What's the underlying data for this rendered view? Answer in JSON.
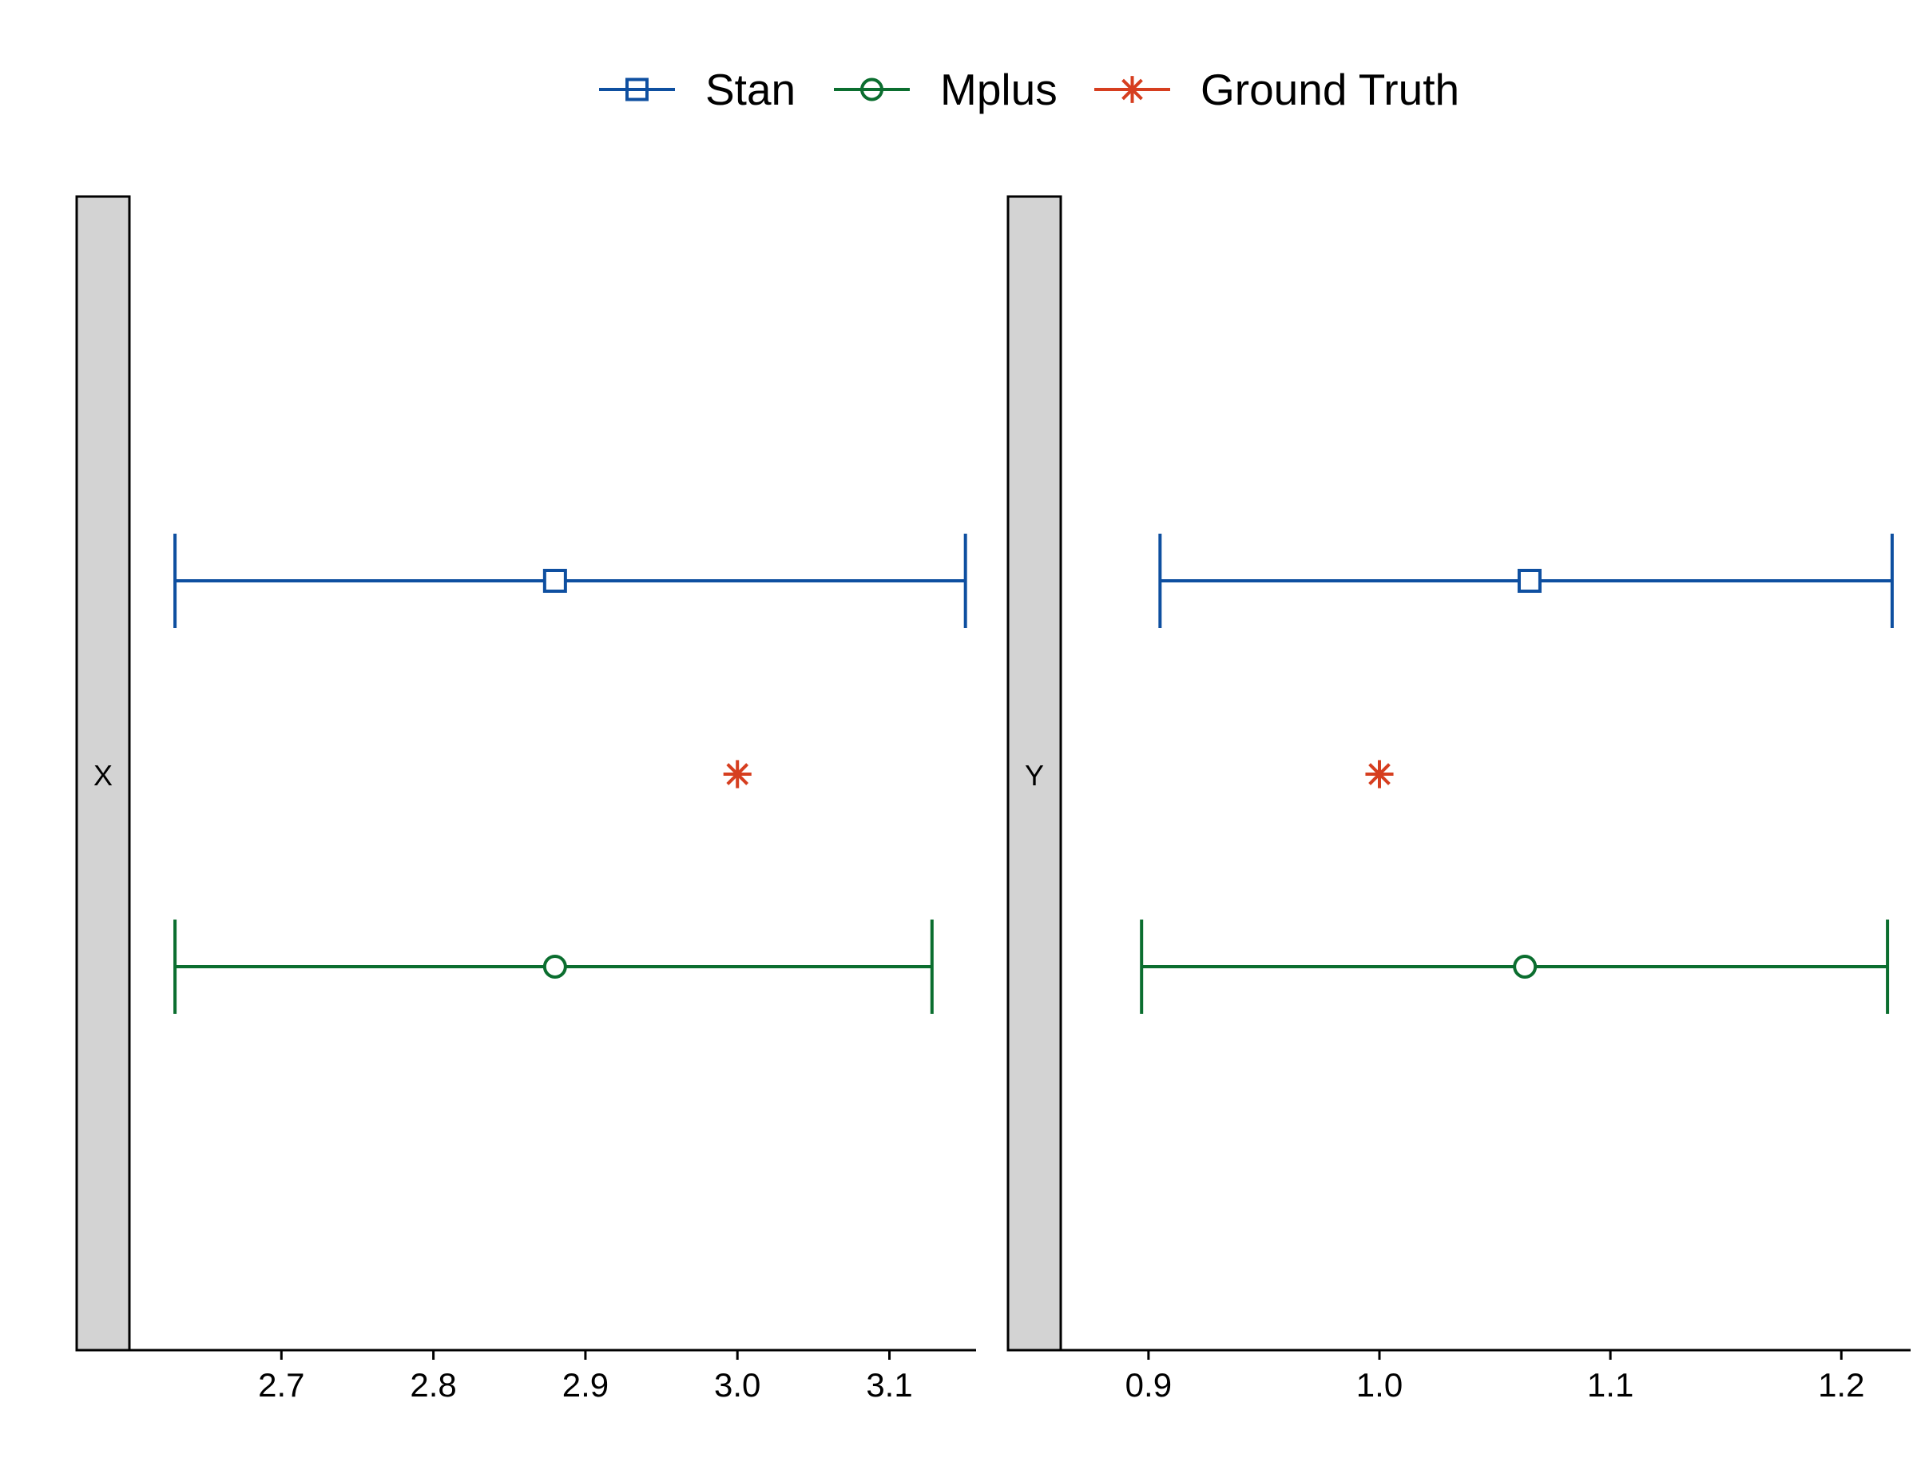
{
  "legend": {
    "items": [
      {
        "label": "Stan",
        "color": "#0E4FA0",
        "marker": "square-icon"
      },
      {
        "label": "Mplus",
        "color": "#0B6E2F",
        "marker": "circle-icon"
      },
      {
        "label": "Ground Truth",
        "color": "#D63E1F",
        "marker": "asterisk-icon"
      }
    ]
  },
  "chart_data": [
    {
      "type": "errorbar",
      "facet": "X",
      "xlim": [
        2.6,
        3.157
      ],
      "x_ticks": [
        "2.7",
        "2.8",
        "2.9",
        "3.0",
        "3.1"
      ],
      "grid": false,
      "series": [
        {
          "name": "Stan",
          "estimate": 2.88,
          "lower": 2.63,
          "upper": 3.15
        },
        {
          "name": "Mplus",
          "estimate": 2.88,
          "lower": 2.63,
          "upper": 3.128
        },
        {
          "name": "Ground Truth",
          "estimate": 3.0
        }
      ]
    },
    {
      "type": "errorbar",
      "facet": "Y",
      "xlim": [
        0.862,
        1.23
      ],
      "x_ticks": [
        "0.9",
        "1.0",
        "1.1",
        "1.2"
      ],
      "grid": false,
      "series": [
        {
          "name": "Stan",
          "estimate": 1.065,
          "lower": 0.905,
          "upper": 1.222
        },
        {
          "name": "Mplus",
          "estimate": 1.063,
          "lower": 0.897,
          "upper": 1.22
        },
        {
          "name": "Ground Truth",
          "estimate": 1.0
        }
      ]
    }
  ]
}
